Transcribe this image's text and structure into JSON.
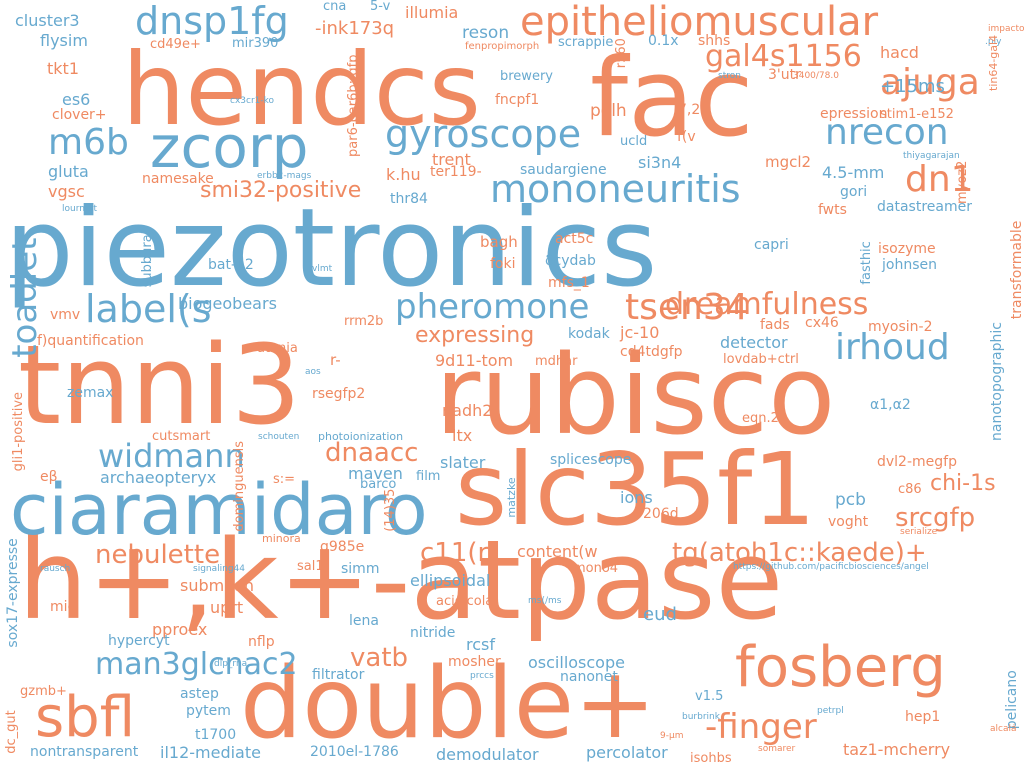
{
  "colors": {
    "orange": "#ef8a62",
    "blue": "#67a9cf"
  },
  "words": [
    {
      "t": "piezotronics",
      "c": "blue"
    },
    {
      "t": "hendcs",
      "c": "orange"
    },
    {
      "t": "fac",
      "c": "orange"
    },
    {
      "t": "tnni3",
      "c": "orange"
    },
    {
      "t": "rubisco",
      "c": "orange"
    },
    {
      "t": "h+,k+-atpase",
      "c": "orange"
    },
    {
      "t": "double+",
      "c": "orange"
    },
    {
      "t": "slc35f1",
      "c": "orange"
    },
    {
      "t": "ciaramidaro",
      "c": "blue"
    },
    {
      "t": "zcorp",
      "c": "blue"
    },
    {
      "t": "epitheliomuscular",
      "c": "orange"
    },
    {
      "t": "fosberg",
      "c": "orange"
    },
    {
      "t": "sbfl",
      "c": "orange"
    },
    {
      "t": "gyroscope",
      "c": "blue"
    },
    {
      "t": "mononeuritis",
      "c": "blue"
    },
    {
      "t": "dnsp1fg",
      "c": "blue"
    },
    {
      "t": "m6b",
      "c": "blue"
    },
    {
      "t": "toadlet",
      "c": "blue"
    },
    {
      "t": "ajuga",
      "c": "orange"
    },
    {
      "t": "nrecon",
      "c": "blue"
    },
    {
      "t": "dn1",
      "c": "orange"
    },
    {
      "t": "gal4s1156",
      "c": "orange"
    },
    {
      "t": "label(s",
      "c": "blue"
    },
    {
      "t": "pheromone",
      "c": "blue"
    },
    {
      "t": "tsen34",
      "c": "orange"
    },
    {
      "t": "dreamfulness",
      "c": "orange"
    },
    {
      "t": "irhoud",
      "c": "blue"
    },
    {
      "t": "widmann",
      "c": "blue"
    },
    {
      "t": "dnaacc",
      "c": "orange"
    },
    {
      "t": "nebulette",
      "c": "orange"
    },
    {
      "t": "c11(r",
      "c": "orange"
    },
    {
      "t": "tg(atoh1c::kaede)+",
      "c": "orange"
    },
    {
      "t": "man3glcnac2",
      "c": "blue"
    },
    {
      "t": "vatb",
      "c": "orange"
    },
    {
      "t": "-finger",
      "c": "orange"
    },
    {
      "t": "srcgfp",
      "c": "orange"
    },
    {
      "t": "chi-1s",
      "c": "orange"
    },
    {
      "t": "smi32-positive",
      "c": "orange"
    },
    {
      "t": "expressing",
      "c": "orange"
    },
    {
      "t": "-ink173q",
      "c": "orange"
    },
    {
      "t": "cluster3",
      "c": "blue"
    },
    {
      "t": "flysim",
      "c": "blue"
    },
    {
      "t": "tkt1",
      "c": "orange"
    },
    {
      "t": "es6",
      "c": "blue"
    },
    {
      "t": "clover+",
      "c": "orange"
    },
    {
      "t": "gluta",
      "c": "blue"
    },
    {
      "t": "vgsc",
      "c": "orange"
    },
    {
      "t": "cd49e+",
      "c": "orange"
    },
    {
      "t": "mir390",
      "c": "blue"
    },
    {
      "t": "cna",
      "c": "blue"
    },
    {
      "t": "5-v",
      "c": "blue"
    },
    {
      "t": "illumia",
      "c": "orange"
    },
    {
      "t": "reson",
      "c": "blue"
    },
    {
      "t": "fenpropimorph",
      "c": "orange"
    },
    {
      "t": "scrappie",
      "c": "blue"
    },
    {
      "t": "0.1x",
      "c": "blue"
    },
    {
      "t": "shhs",
      "c": "orange"
    },
    {
      "t": "impactor",
      "c": "orange"
    },
    {
      "t": ".ply",
      "c": "blue"
    },
    {
      "t": "tin64-gal4",
      "c": "orange"
    },
    {
      "t": "hacd",
      "c": "orange"
    },
    {
      "t": "+15ms",
      "c": "blue"
    },
    {
      "t": "stim1-e152",
      "c": "orange"
    },
    {
      "t": "epression",
      "c": "orange"
    },
    {
      "t": "3'utr",
      "c": "orange"
    },
    {
      "t": "stron",
      "c": "blue"
    },
    {
      "t": "3400/78.0",
      "c": "orange"
    },
    {
      "t": "brewery",
      "c": "blue"
    },
    {
      "t": "fncpf1",
      "c": "orange"
    },
    {
      "t": "r560",
      "c": "orange"
    },
    {
      "t": "polh",
      "c": "orange"
    },
    {
      "t": "7,20",
      "c": "orange"
    },
    {
      "t": "ucld",
      "c": "blue"
    },
    {
      "t": "f(v",
      "c": "orange"
    },
    {
      "t": "si3n4",
      "c": "blue"
    },
    {
      "t": "mgcl2",
      "c": "orange"
    },
    {
      "t": "trent",
      "c": "orange"
    },
    {
      "t": "ter119-",
      "c": "orange"
    },
    {
      "t": "saudargiene",
      "c": "blue"
    },
    {
      "t": "k.hu",
      "c": "orange"
    },
    {
      "t": "par6-par6b::gfp",
      "c": "orange"
    },
    {
      "t": "cx3cr1-ko",
      "c": "blue"
    },
    {
      "t": "namesake",
      "c": "orange"
    },
    {
      "t": "erbb2-mags",
      "c": "blue"
    },
    {
      "t": "lourmat",
      "c": "blue"
    },
    {
      "t": "thr84",
      "c": "blue"
    },
    {
      "t": "4.5-mm",
      "c": "blue"
    },
    {
      "t": "gori",
      "c": "blue"
    },
    {
      "t": "fwts",
      "c": "orange"
    },
    {
      "t": "datastreamer",
      "c": "blue"
    },
    {
      "t": "thiyagarajan",
      "c": "blue"
    },
    {
      "t": "myoz2",
      "c": "orange"
    },
    {
      "t": "transformable",
      "c": "orange"
    },
    {
      "t": "fasthic",
      "c": "blue"
    },
    {
      "t": "isozyme",
      "c": "orange"
    },
    {
      "t": "johnsen",
      "c": "blue"
    },
    {
      "t": "capri",
      "c": "blue"
    },
    {
      "t": "bagh",
      "c": "orange"
    },
    {
      "t": "act5c",
      "c": "orange"
    },
    {
      "t": "δcydab",
      "c": "blue"
    },
    {
      "t": "foki",
      "c": "orange"
    },
    {
      "t": "mfs_1",
      "c": "orange"
    },
    {
      "t": "subburaj",
      "c": "blue"
    },
    {
      "t": "bat-12",
      "c": "blue"
    },
    {
      "t": "vlmt",
      "c": "blue"
    },
    {
      "t": "biogeobears",
      "c": "blue"
    },
    {
      "t": "rrm2b",
      "c": "orange"
    },
    {
      "t": "vmv",
      "c": "orange"
    },
    {
      "t": "f)quantification",
      "c": "orange"
    },
    {
      "t": "kodak",
      "c": "blue"
    },
    {
      "t": "jc-10",
      "c": "orange"
    },
    {
      "t": "detector",
      "c": "blue"
    },
    {
      "t": "fads",
      "c": "orange"
    },
    {
      "t": "cx46",
      "c": "orange"
    },
    {
      "t": "myosin-2",
      "c": "orange"
    },
    {
      "t": "nanotopographic",
      "c": "blue"
    },
    {
      "t": "cd4tdgfp",
      "c": "orange"
    },
    {
      "t": "lovdab+ctrl",
      "c": "orange"
    },
    {
      "t": "atonia",
      "c": "orange"
    },
    {
      "t": "r-",
      "c": "orange"
    },
    {
      "t": "9d11-tom",
      "c": "orange"
    },
    {
      "t": "mdhar",
      "c": "orange"
    },
    {
      "t": "aos",
      "c": "blue"
    },
    {
      "t": "rsegfp2",
      "c": "orange"
    },
    {
      "t": "zemax",
      "c": "blue"
    },
    {
      "t": "gli1-positive",
      "c": "orange"
    },
    {
      "t": "nadh2",
      "c": "orange"
    },
    {
      "t": "ltx",
      "c": "orange"
    },
    {
      "t": "eqn.2",
      "c": "orange"
    },
    {
      "t": "α1,α2",
      "c": "blue"
    },
    {
      "t": "cutsmart",
      "c": "orange"
    },
    {
      "t": "schouten",
      "c": "blue"
    },
    {
      "t": "photoionization",
      "c": "blue"
    },
    {
      "t": "dominguensis",
      "c": "orange"
    },
    {
      "t": "slater",
      "c": "blue"
    },
    {
      "t": "splicescope",
      "c": "blue"
    },
    {
      "t": "maven",
      "c": "blue"
    },
    {
      "t": "dvl2-megfp",
      "c": "orange"
    },
    {
      "t": "eβ",
      "c": "orange"
    },
    {
      "t": "archaeopteryx",
      "c": "blue"
    },
    {
      "t": "s:=",
      "c": "orange"
    },
    {
      "t": "film",
      "c": "blue"
    },
    {
      "t": "barco",
      "c": "blue"
    },
    {
      "t": "c86",
      "c": "orange"
    },
    {
      "t": "ions",
      "c": "blue"
    },
    {
      "t": "206d",
      "c": "orange"
    },
    {
      "t": "matzke",
      "c": "blue"
    },
    {
      "t": "pcb",
      "c": "blue"
    },
    {
      "t": "voght",
      "c": "orange"
    },
    {
      "t": "serialize",
      "c": "orange"
    },
    {
      "t": "(14)35",
      "c": "orange"
    },
    {
      "t": "minora",
      "c": "orange"
    },
    {
      "t": "g985e",
      "c": "orange"
    },
    {
      "t": "content(w",
      "c": "orange"
    },
    {
      "t": "mono4",
      "c": "orange"
    },
    {
      "t": "sox17-expresse",
      "c": "blue"
    },
    {
      "t": "rausch",
      "c": "blue"
    },
    {
      "t": "signaling44",
      "c": "blue"
    },
    {
      "t": "sal1",
      "c": "orange"
    },
    {
      "t": "simm",
      "c": "blue"
    },
    {
      "t": "ellipsoidal",
      "c": "blue"
    },
    {
      "t": "https://github.com/pacificbiosciences/angel",
      "c": "blue"
    },
    {
      "t": "submean",
      "c": "orange"
    },
    {
      "t": "miq",
      "c": "orange"
    },
    {
      "t": "uprt",
      "c": "orange"
    },
    {
      "t": "acidicola",
      "c": "orange"
    },
    {
      "t": "ms(/ms",
      "c": "blue"
    },
    {
      "t": "eud",
      "c": "blue"
    },
    {
      "t": "pproex",
      "c": "orange"
    },
    {
      "t": "lena",
      "c": "blue"
    },
    {
      "t": "nitride",
      "c": "blue"
    },
    {
      "t": "hypercyt",
      "c": "blue"
    },
    {
      "t": "nflp",
      "c": "orange"
    },
    {
      "t": "rcsf",
      "c": "blue"
    },
    {
      "t": "mosher",
      "c": "orange"
    },
    {
      "t": "oscilloscope",
      "c": "blue"
    },
    {
      "t": "nanonet",
      "c": "blue"
    },
    {
      "t": "dlp_rna",
      "c": "blue"
    },
    {
      "t": "filtrator",
      "c": "blue"
    },
    {
      "t": "prccs",
      "c": "blue"
    },
    {
      "t": "gzmb+",
      "c": "orange"
    },
    {
      "t": "astep",
      "c": "blue"
    },
    {
      "t": "pytem",
      "c": "blue"
    },
    {
      "t": "dc_gut",
      "c": "orange"
    },
    {
      "t": "v1.5",
      "c": "blue"
    },
    {
      "t": "hep1",
      "c": "orange"
    },
    {
      "t": "pelicano",
      "c": "blue"
    },
    {
      "t": "t1700",
      "c": "blue"
    },
    {
      "t": "burbrink",
      "c": "blue"
    },
    {
      "t": "petrpl",
      "c": "blue"
    },
    {
      "t": "alcalá",
      "c": "orange"
    },
    {
      "t": "nontransparent",
      "c": "blue"
    },
    {
      "t": "il12-mediate",
      "c": "blue"
    },
    {
      "t": "2010el-1786",
      "c": "blue"
    },
    {
      "t": "demodulator",
      "c": "blue"
    },
    {
      "t": "percolator",
      "c": "blue"
    },
    {
      "t": "isohbs",
      "c": "orange"
    },
    {
      "t": "9-μm",
      "c": "orange"
    },
    {
      "t": "somarer",
      "c": "orange"
    },
    {
      "t": "taz1-mcherry",
      "c": "orange"
    }
  ]
}
